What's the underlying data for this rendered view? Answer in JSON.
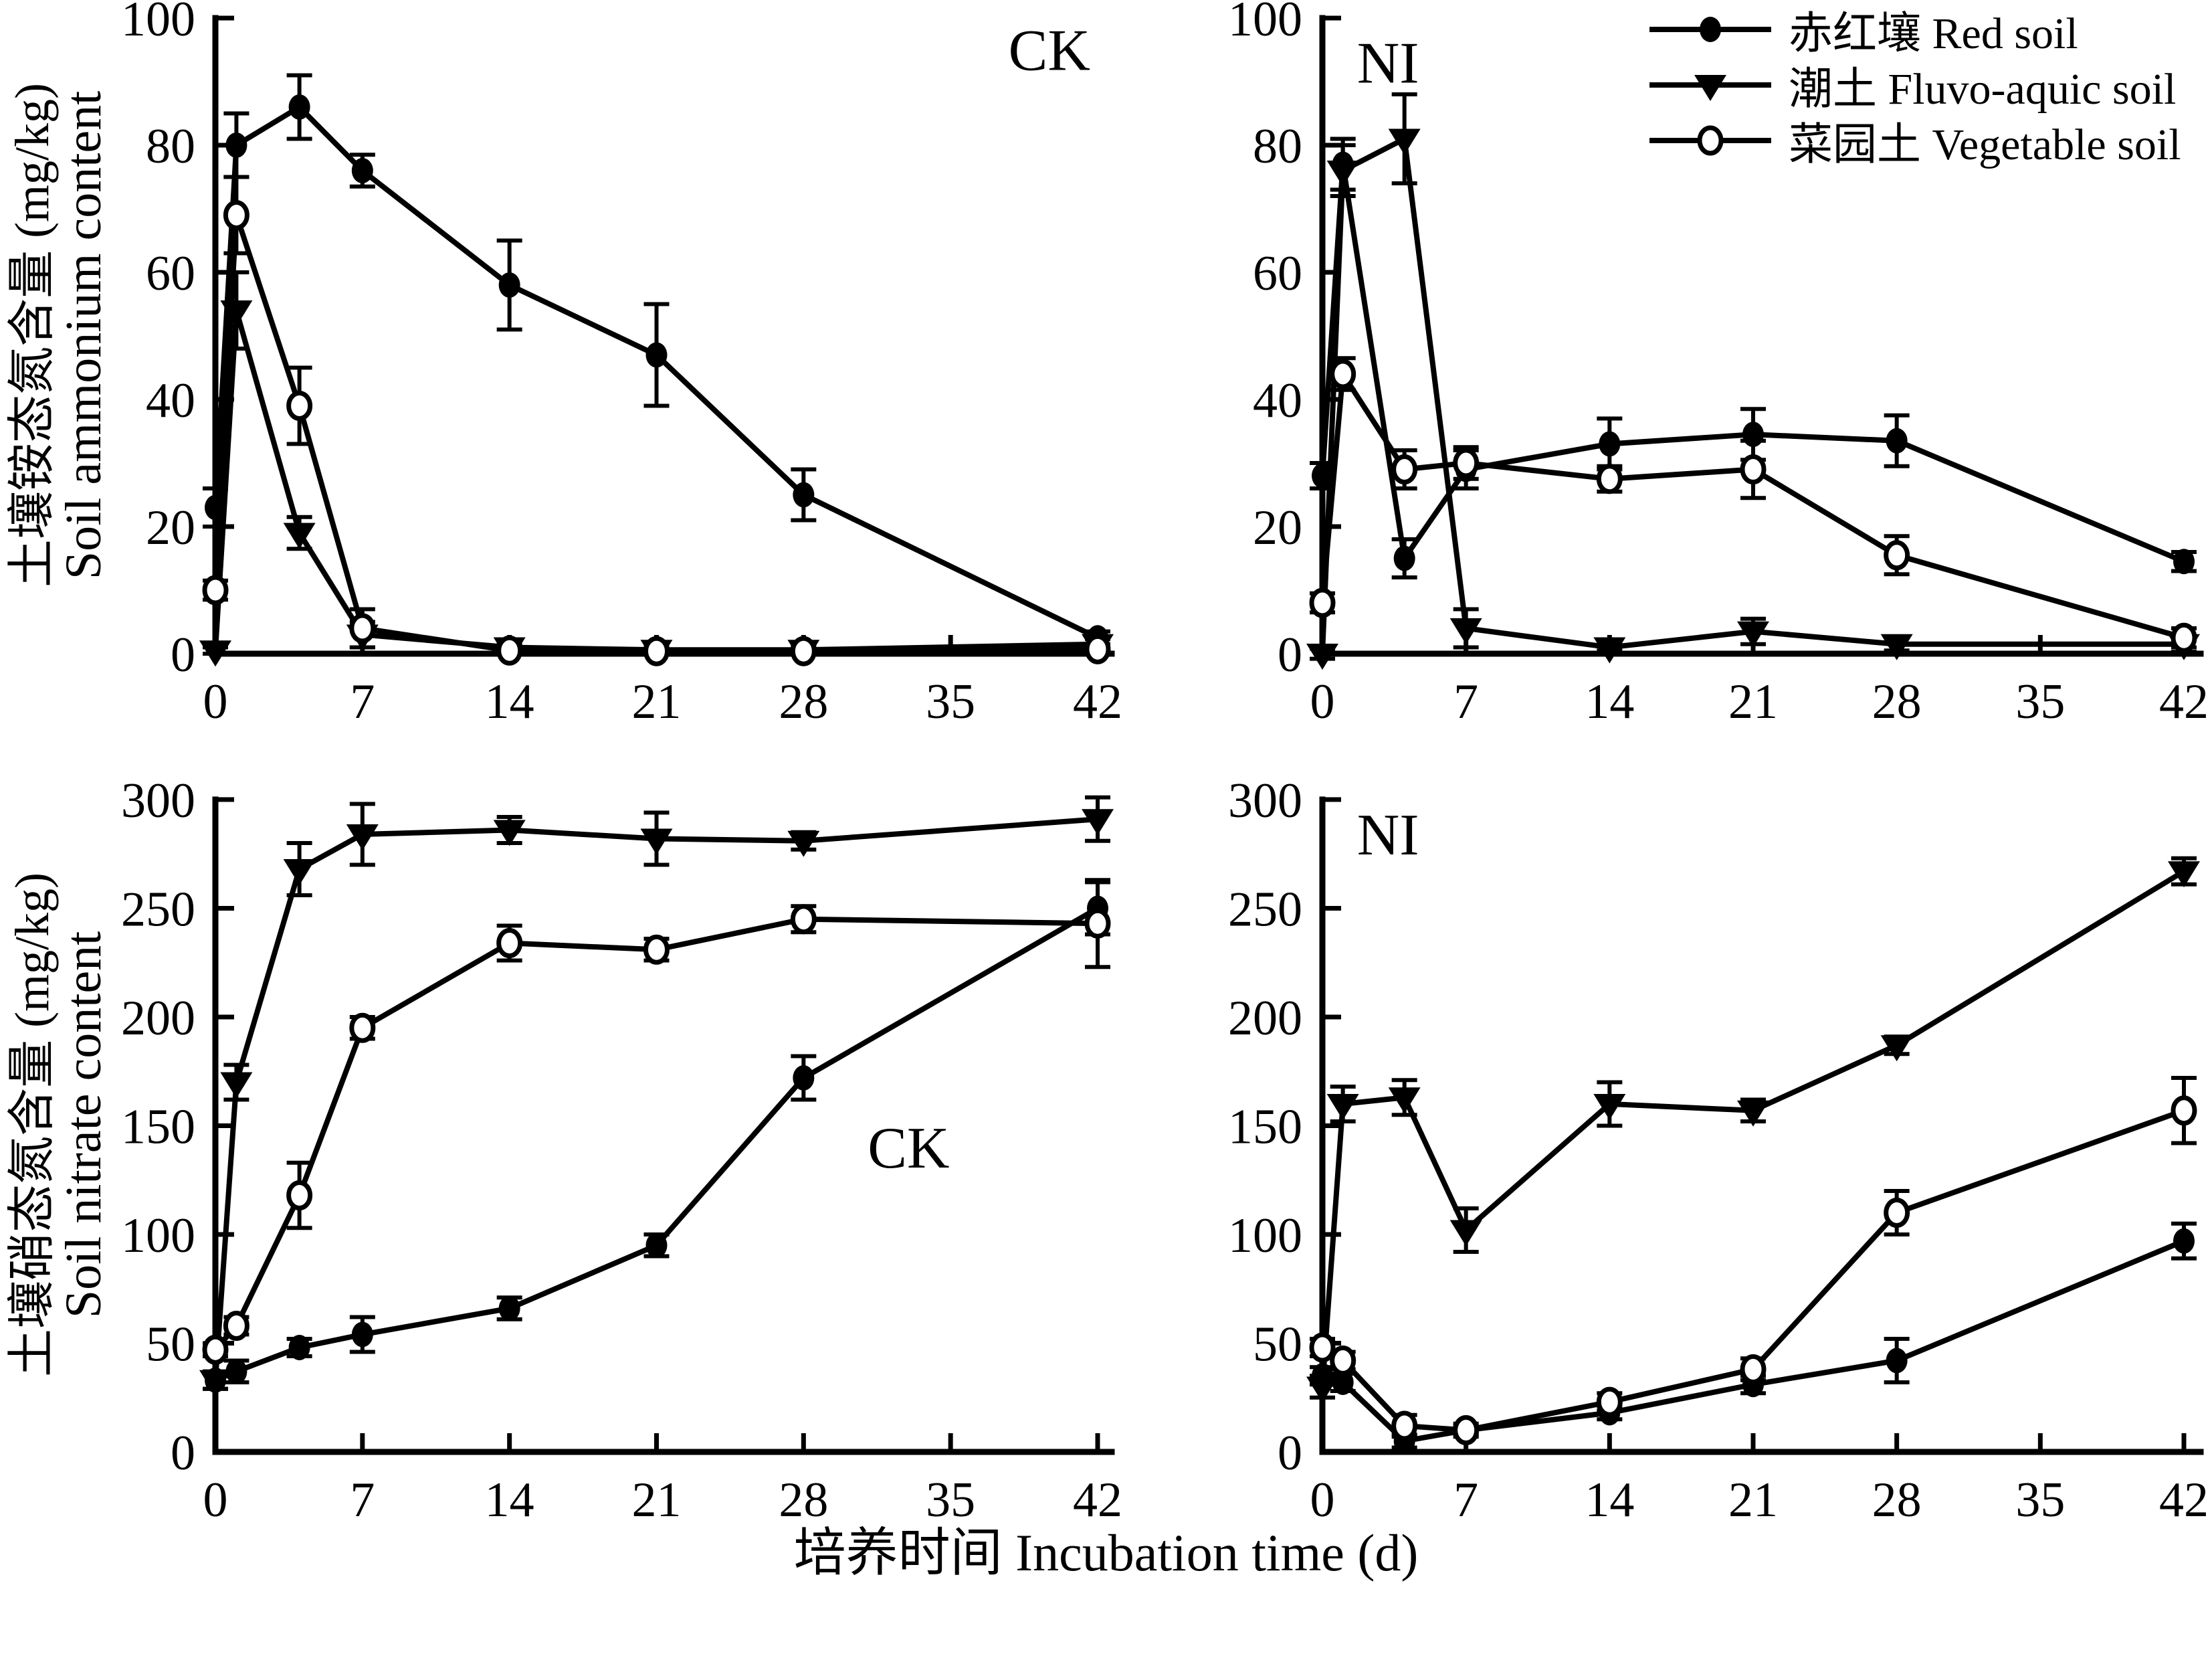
{
  "figure": {
    "x_axis_title": "培养时间 Incubation time (d)",
    "x_tick_values": [
      0,
      7,
      14,
      21,
      28,
      35,
      42
    ],
    "x_max": 42
  },
  "rows": [
    {
      "ylabel_cn": "土壤铵态氮含量 (mg/kg)",
      "ylabel_en": "Soil ammonium content"
    },
    {
      "ylabel_cn": "土壤硝态氮含量 (mg/kg)",
      "ylabel_en": "Soil nitrate content"
    }
  ],
  "legend": {
    "items": [
      {
        "label": "赤红壤 Red soil",
        "marker": "filled-circle"
      },
      {
        "label": "潮土 Fluvo-aquic soil",
        "marker": "filled-triangle"
      },
      {
        "label": "菜园土 Vegetable soil",
        "marker": "open-circle"
      }
    ]
  },
  "colors": {
    "line": "#000000",
    "marker_fill": "#000000",
    "open_marker_fill": "#ffffff"
  },
  "chart_data": [
    {
      "id": "ck-ammonium",
      "type": "line",
      "panel_label": "CK",
      "label_anchor": {
        "day": 39.7,
        "value": 95
      },
      "xlabel": "培养时间 Incubation time (d)",
      "ylabel": "土壤铵态氮含量 Soil ammonium content (mg/kg)",
      "x": [
        0,
        1,
        4,
        7,
        14,
        21,
        28,
        42
      ],
      "xlim": [
        0,
        42
      ],
      "ylim": [
        0,
        100
      ],
      "yticks": [
        0,
        20,
        40,
        60,
        80,
        100
      ],
      "grid": false,
      "series": [
        {
          "name": "赤红壤 Red soil",
          "marker": "filled-circle",
          "values": [
            23,
            80,
            86,
            76,
            58,
            47,
            25,
            2.5
          ],
          "errors": [
            3,
            5,
            5,
            2.5,
            7,
            8,
            4,
            1
          ]
        },
        {
          "name": "潮土 Fluvo-aquic soil",
          "marker": "filled-triangle",
          "values": [
            0.5,
            54,
            19,
            3,
            1,
            0.6,
            0.6,
            1.5
          ],
          "errors": [
            0.5,
            6,
            2.5,
            2,
            0.5,
            0.4,
            0.4,
            0.8
          ]
        },
        {
          "name": "菜园土 Vegetable soil",
          "marker": "open-circle",
          "values": [
            10,
            69,
            39,
            4,
            0.5,
            0.4,
            0.4,
            0.7
          ],
          "errors": [
            1.5,
            6,
            6,
            3,
            0.4,
            0.3,
            0.3,
            0.5
          ]
        }
      ]
    },
    {
      "id": "ni-ammonium",
      "type": "line",
      "panel_label": "NI",
      "label_anchor": {
        "day": 3.2,
        "value": 93
      },
      "xlabel": "培养时间 Incubation time (d)",
      "ylabel": "土壤铵态氮含量 Soil ammonium content (mg/kg)",
      "x": [
        0,
        1,
        4,
        7,
        14,
        21,
        28,
        42
      ],
      "xlim": [
        0,
        42
      ],
      "ylim": [
        0,
        100
      ],
      "yticks": [
        0,
        20,
        40,
        60,
        80,
        100
      ],
      "grid": false,
      "series": [
        {
          "name": "赤红壤 Red soil",
          "marker": "filled-circle",
          "values": [
            28,
            77,
            15,
            29,
            33,
            34.5,
            33.5,
            14.5
          ],
          "errors": [
            2,
            4,
            3,
            3,
            4,
            4,
            4,
            1.5
          ]
        },
        {
          "name": "潮土 Fluvo-aquic soil",
          "marker": "filled-triangle",
          "values": [
            0,
            76,
            81,
            4,
            1,
            3.5,
            1.5,
            1.5
          ],
          "errors": [
            0.8,
            4,
            7,
            3,
            0.5,
            2,
            1,
            1.2
          ]
        },
        {
          "name": "菜园土 Vegetable soil",
          "marker": "open-circle",
          "values": [
            8,
            44,
            29,
            30,
            27.5,
            29,
            15.5,
            2.5
          ],
          "errors": [
            1.5,
            2.5,
            3,
            2.5,
            2,
            4.5,
            3,
            1.5
          ]
        }
      ]
    },
    {
      "id": "ck-nitrate",
      "type": "line",
      "panel_label": "CK",
      "label_anchor": {
        "day": 33,
        "value": 140
      },
      "xlabel": "培养时间 Incubation time (d)",
      "ylabel": "土壤硝态氮含量 Soil nitrate content (mg/kg)",
      "x": [
        0,
        1,
        4,
        7,
        14,
        21,
        28,
        42
      ],
      "xlim": [
        0,
        42
      ],
      "ylim": [
        0,
        300
      ],
      "yticks": [
        0,
        50,
        100,
        150,
        200,
        250,
        300
      ],
      "grid": false,
      "series": [
        {
          "name": "赤红壤 Red soil",
          "marker": "filled-circle",
          "values": [
            33,
            37,
            48,
            54,
            66,
            95,
            172,
            250
          ],
          "errors": [
            4,
            5,
            4,
            8,
            5,
            5,
            10,
            12
          ]
        },
        {
          "name": "潮土 Fluvo-aquic soil",
          "marker": "filled-triangle",
          "values": [
            33,
            170,
            268,
            284,
            286,
            282,
            281,
            291
          ],
          "errors": [
            4,
            8,
            12,
            14,
            6,
            12,
            4,
            10
          ]
        },
        {
          "name": "菜园土 Vegetable soil",
          "marker": "open-circle",
          "values": [
            47,
            58,
            118,
            195,
            234,
            231,
            245,
            243
          ],
          "errors": [
            3,
            4,
            15,
            5,
            8,
            5,
            6,
            20
          ]
        }
      ]
    },
    {
      "id": "ni-nitrate",
      "type": "line",
      "panel_label": "NI",
      "label_anchor": {
        "day": 3.2,
        "value": 284
      },
      "xlabel": "培养时间 Incubation time (d)",
      "ylabel": "土壤硝态氮含量 Soil nitrate content (mg/kg)",
      "x": [
        0,
        1,
        4,
        7,
        14,
        21,
        28,
        42
      ],
      "xlim": [
        0,
        42
      ],
      "ylim": [
        0,
        300
      ],
      "yticks": [
        0,
        50,
        100,
        150,
        200,
        250,
        300
      ],
      "grid": false,
      "series": [
        {
          "name": "赤红壤 Red soil",
          "marker": "filled-circle",
          "values": [
            35,
            32,
            5,
            10,
            18,
            31,
            42,
            97
          ],
          "errors": [
            4,
            4,
            3,
            2,
            3,
            4,
            10,
            8
          ]
        },
        {
          "name": "潮土 Fluvo-aquic soil",
          "marker": "filled-triangle",
          "values": [
            30,
            160,
            163,
            102,
            160,
            157,
            187,
            267
          ],
          "errors": [
            5,
            8,
            8,
            10,
            10,
            5,
            4,
            6
          ]
        },
        {
          "name": "菜园土 Vegetable soil",
          "marker": "open-circle",
          "values": [
            48,
            42,
            12,
            10,
            23,
            38,
            110,
            157
          ],
          "errors": [
            4,
            4,
            5,
            3,
            4,
            5,
            10,
            15
          ]
        }
      ]
    }
  ]
}
